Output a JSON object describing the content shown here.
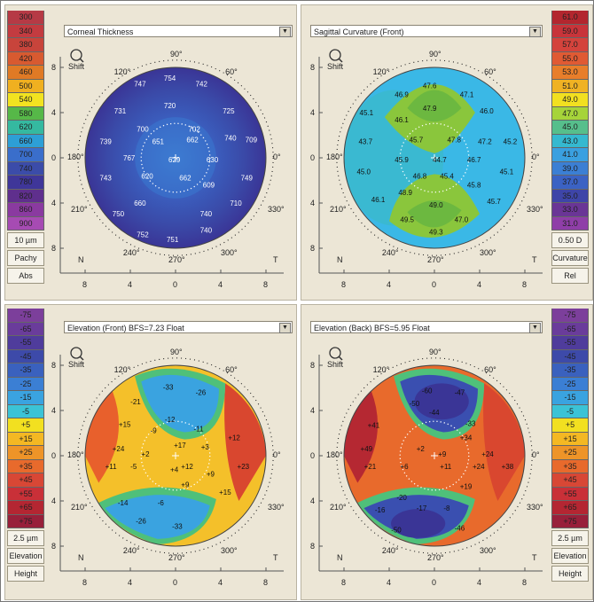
{
  "panels": [
    {
      "id": "pachy",
      "title": "Corneal Thickness",
      "scale": [
        "300",
        "340",
        "380",
        "420",
        "460",
        "500",
        "540",
        "580",
        "620",
        "660",
        "700",
        "740",
        "780",
        "820",
        "860",
        "900"
      ],
      "scale_colors": [
        "#b63a45",
        "#c33b40",
        "#c8443b",
        "#d85a30",
        "#e07a25",
        "#f0b020",
        "#f2e320",
        "#56b848",
        "#35b9a0",
        "#2d9fd6",
        "#3a6ecb",
        "#3b4ca9",
        "#3f3699",
        "#5f2f8d",
        "#8a3aa0",
        "#a64bb3"
      ],
      "info": [
        "10 µm",
        "Pachy",
        "Abs"
      ],
      "values": [
        "754",
        "747",
        "742",
        "731",
        "720",
        "725",
        "700",
        "702",
        "740",
        "739",
        "651",
        "662",
        "709",
        "767",
        "629",
        "630",
        "743",
        "620",
        "662",
        "609",
        "749",
        "660",
        "710",
        "750",
        "740",
        "752",
        "740",
        "751"
      ],
      "axis": {
        "top": "90°",
        "upper_left": "120°",
        "upper_right": "60°",
        "left": "180°",
        "right": "0°",
        "lower_left": "210°",
        "lower_right": "330°",
        "bottom_left": "240°",
        "bottom": "270°",
        "bottom_right": "300°",
        "nasal": "N",
        "temporal": "T"
      },
      "ticks": [
        "8",
        "4",
        "0",
        "4",
        "8"
      ],
      "icon_label": "Shift"
    },
    {
      "id": "sagittal",
      "title": "Sagittal Curvature (Front)",
      "scale": [
        "61.0",
        "59.0",
        "57.0",
        "55.0",
        "53.0",
        "51.0",
        "49.0",
        "47.0",
        "45.0",
        "43.0",
        "41.0",
        "39.0",
        "37.0",
        "35.0",
        "33.0",
        "31.0"
      ],
      "scale_colors": [
        "#b3262e",
        "#c8343a",
        "#d4433c",
        "#e05a33",
        "#e87e2a",
        "#f0b223",
        "#f2e020",
        "#a6d43a",
        "#56bf8c",
        "#35b9d0",
        "#3aa0e0",
        "#3b7fd4",
        "#3b62c4",
        "#3e45a8",
        "#6a3596",
        "#8f3ea8"
      ],
      "info": [
        "0.50 D",
        "Curvature",
        "Rel"
      ],
      "values": [
        "47.6",
        "46.9",
        "47.1",
        "45.1",
        "47.9",
        "46.1",
        "46.0",
        "43.7",
        "45.7",
        "47.8",
        "47.2",
        "45.2",
        "45.9",
        "46.7",
        "44.7",
        "45.0",
        "46.8",
        "45.4",
        "45.8",
        "45.1",
        "46.1",
        "48.9",
        "49.0",
        "45.7",
        "49.5",
        "47.0",
        "49.3"
      ],
      "axis": {
        "top": "90°",
        "upper_left": "120°",
        "upper_right": "60°",
        "left": "180°",
        "right": "0°",
        "lower_left": "210°",
        "lower_right": "330°",
        "bottom_left": "240°",
        "bottom": "270°",
        "bottom_right": "300°",
        "nasal": "N",
        "temporal": "T"
      },
      "ticks": [
        "8",
        "4",
        "0",
        "4",
        "8"
      ],
      "icon_label": "Shift"
    },
    {
      "id": "elev-front",
      "title": "Elevation (Front)  BFS=7.23 Float",
      "scale": [
        "-75",
        "-65",
        "-55",
        "-45",
        "-35",
        "-25",
        "-15",
        "-5",
        "+5",
        "+15",
        "+25",
        "+35",
        "+45",
        "+55",
        "+65",
        "+75"
      ],
      "scale_colors": [
        "#7c3f9b",
        "#6a3c9b",
        "#4f3c9c",
        "#3d4aa9",
        "#3a61be",
        "#3b7fd4",
        "#3aa3e0",
        "#3bc3d6",
        "#f2e020",
        "#f4b823",
        "#ee9428",
        "#e86a2c",
        "#d84735",
        "#c93038",
        "#b42632",
        "#98203a"
      ],
      "info": [
        "2.5 µm",
        "Elevation",
        "Height"
      ],
      "values": [
        "-33",
        "-26",
        "-21",
        "-12",
        "-9",
        "-11",
        "+15",
        "+17",
        "+12",
        "+24",
        "+3",
        "+2",
        "+11",
        "+12",
        "+23",
        "-5",
        "+4",
        "+9",
        "+9",
        "+15",
        "-14",
        "-6",
        "-26",
        "-33"
      ],
      "axis": {
        "top": "90°",
        "upper_left": "120°",
        "upper_right": "60°",
        "left": "180°",
        "right": "0°",
        "lower_left": "210°",
        "lower_right": "330°",
        "bottom_left": "240°",
        "bottom": "270°",
        "bottom_right": "300°",
        "nasal": "N",
        "temporal": "T"
      },
      "ticks": [
        "8",
        "4",
        "0",
        "4",
        "8"
      ],
      "icon_label": "Shift"
    },
    {
      "id": "elev-back",
      "title": "Elevation (Back)  BFS=5.95 Float",
      "scale": [
        "-75",
        "-65",
        "-55",
        "-45",
        "-35",
        "-25",
        "-15",
        "-5",
        "+5",
        "+15",
        "+25",
        "+35",
        "+45",
        "+55",
        "+65",
        "+75"
      ],
      "scale_colors": [
        "#7c3f9b",
        "#6a3c9b",
        "#4f3c9c",
        "#3d4aa9",
        "#3a61be",
        "#3b7fd4",
        "#3aa3e0",
        "#3bc3d6",
        "#f2e020",
        "#f4b823",
        "#ee9428",
        "#e86a2c",
        "#d84735",
        "#c93038",
        "#b42632",
        "#98203a"
      ],
      "info": [
        "2.5 µm",
        "Elevation",
        "Height"
      ],
      "values": [
        "-60",
        "-47",
        "-50",
        "-44",
        "-33",
        "+41",
        "+2",
        "+34",
        "+49",
        "+9",
        "+24",
        "+21",
        "+11",
        "+6",
        "+24",
        "+38",
        "+19",
        "-20",
        "-16",
        "-17",
        "-8",
        "-50",
        "-46"
      ],
      "axis": {
        "top": "90°",
        "upper_left": "120°",
        "upper_right": "60°",
        "left": "180°",
        "right": "0°",
        "lower_left": "210°",
        "lower_right": "330°",
        "bottom_left": "240°",
        "bottom": "270°",
        "bottom_right": "300°",
        "nasal": "N",
        "temporal": "T"
      },
      "ticks": [
        "8",
        "4",
        "0",
        "4",
        "8"
      ],
      "icon_label": "Shift"
    }
  ]
}
